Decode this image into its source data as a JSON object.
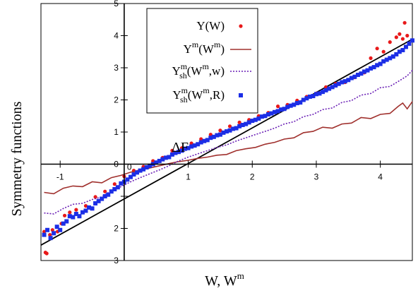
{
  "chart_data": {
    "type": "scatter",
    "title": "",
    "xlabel_main": "W, W",
    "xlabel_sup": "m",
    "ylabel": "Symmetry functions",
    "xlim": [
      -1.3,
      4.5
    ],
    "ylim": [
      -3,
      5
    ],
    "grid": false,
    "legend_position": "top-center",
    "x_ticks": [
      -1,
      1,
      2,
      3,
      4
    ],
    "x_zero_label": "0",
    "y_ticks": [
      -3,
      -2,
      -1,
      0,
      1,
      2,
      3,
      4,
      5
    ],
    "y_tick_labels": [
      "3",
      "2",
      "",
      "0",
      "1",
      "2",
      "3",
      "4",
      "5"
    ],
    "annotation": "ΔF",
    "colors": {
      "red": "#e8191a",
      "brown": "#a0302d",
      "purple": "#6a1fb5",
      "blue": "#1c2ee6",
      "black": "#000000"
    },
    "series": [
      {
        "label_base": "Y(W)",
        "label_sup": "",
        "label_sub": "",
        "label_tail": "",
        "style": "red-dots",
        "points": [
          [
            -1.25,
            -2.1
          ],
          [
            -1.23,
            -2.75
          ],
          [
            -1.21,
            -2.78
          ],
          [
            -1.16,
            -2.2
          ],
          [
            -1.12,
            -2.05
          ],
          [
            -1.04,
            -2.1
          ],
          [
            -0.98,
            -1.85
          ],
          [
            -0.93,
            -1.6
          ],
          [
            -0.85,
            -1.5
          ],
          [
            -0.75,
            -1.42
          ],
          [
            -0.6,
            -1.3
          ],
          [
            -0.45,
            -1.02
          ],
          [
            -0.3,
            -0.85
          ],
          [
            -0.15,
            -0.62
          ],
          [
            0.0,
            -0.38
          ],
          [
            0.15,
            -0.2
          ],
          [
            0.3,
            -0.08
          ],
          [
            0.45,
            0.1
          ],
          [
            0.6,
            0.2
          ],
          [
            0.75,
            0.42
          ],
          [
            0.9,
            0.5
          ],
          [
            1.05,
            0.65
          ],
          [
            1.2,
            0.78
          ],
          [
            1.35,
            0.92
          ],
          [
            1.5,
            1.05
          ],
          [
            1.65,
            1.18
          ],
          [
            1.8,
            1.3
          ],
          [
            1.95,
            1.38
          ],
          [
            2.1,
            1.5
          ],
          [
            2.25,
            1.6
          ],
          [
            2.4,
            1.8
          ],
          [
            2.55,
            1.85
          ],
          [
            2.7,
            1.98
          ],
          [
            2.85,
            2.1
          ],
          [
            3.0,
            2.2
          ],
          [
            3.15,
            2.4
          ],
          [
            3.3,
            2.5
          ],
          [
            3.45,
            2.55
          ],
          [
            3.6,
            2.7
          ],
          [
            3.75,
            2.85
          ],
          [
            3.85,
            3.3
          ],
          [
            3.95,
            3.6
          ],
          [
            4.05,
            3.5
          ],
          [
            4.15,
            3.8
          ],
          [
            4.25,
            3.95
          ],
          [
            4.3,
            4.05
          ],
          [
            4.35,
            3.9
          ],
          [
            4.38,
            4.4
          ],
          [
            4.42,
            4.0
          ]
        ]
      },
      {
        "label_base": "Y",
        "label_sup": "m",
        "label_sub": "",
        "label_tail": "(W",
        "label_tail_sup": "m",
        "label_end": ")",
        "style": "brown-line",
        "points": [
          [
            -1.25,
            -0.88
          ],
          [
            -1.1,
            -0.92
          ],
          [
            -0.95,
            -0.75
          ],
          [
            -0.8,
            -0.68
          ],
          [
            -0.65,
            -0.7
          ],
          [
            -0.5,
            -0.55
          ],
          [
            -0.35,
            -0.58
          ],
          [
            -0.2,
            -0.42
          ],
          [
            -0.05,
            -0.35
          ],
          [
            0.1,
            -0.25
          ],
          [
            0.25,
            -0.18
          ],
          [
            0.4,
            -0.12
          ],
          [
            0.55,
            -0.05
          ],
          [
            0.7,
            0.02
          ],
          [
            0.85,
            0.08
          ],
          [
            1.0,
            0.12
          ],
          [
            1.15,
            0.18
          ],
          [
            1.3,
            0.22
          ],
          [
            1.45,
            0.28
          ],
          [
            1.6,
            0.3
          ],
          [
            1.75,
            0.42
          ],
          [
            1.9,
            0.48
          ],
          [
            2.05,
            0.52
          ],
          [
            2.2,
            0.62
          ],
          [
            2.35,
            0.68
          ],
          [
            2.5,
            0.78
          ],
          [
            2.65,
            0.82
          ],
          [
            2.8,
            0.98
          ],
          [
            2.95,
            1.02
          ],
          [
            3.1,
            1.15
          ],
          [
            3.25,
            1.12
          ],
          [
            3.4,
            1.25
          ],
          [
            3.55,
            1.28
          ],
          [
            3.7,
            1.45
          ],
          [
            3.85,
            1.42
          ],
          [
            4.0,
            1.55
          ],
          [
            4.15,
            1.58
          ],
          [
            4.28,
            1.8
          ],
          [
            4.35,
            1.9
          ],
          [
            4.42,
            1.72
          ],
          [
            4.5,
            1.95
          ]
        ]
      },
      {
        "label_base": "Y",
        "label_sup": "m",
        "label_sub": "sh",
        "label_tail": "(W",
        "label_tail_sup": "m",
        "label_end": ",w)",
        "style": "purple-dotted",
        "points": [
          [
            -1.25,
            -1.52
          ],
          [
            -1.1,
            -1.55
          ],
          [
            -0.95,
            -1.38
          ],
          [
            -0.8,
            -1.25
          ],
          [
            -0.65,
            -1.22
          ],
          [
            -0.5,
            -1.1
          ],
          [
            -0.35,
            -1.02
          ],
          [
            -0.2,
            -0.82
          ],
          [
            -0.05,
            -0.7
          ],
          [
            0.1,
            -0.55
          ],
          [
            0.25,
            -0.42
          ],
          [
            0.4,
            -0.3
          ],
          [
            0.55,
            -0.18
          ],
          [
            0.7,
            -0.05
          ],
          [
            0.85,
            0.1
          ],
          [
            1.0,
            0.22
          ],
          [
            1.15,
            0.32
          ],
          [
            1.3,
            0.42
          ],
          [
            1.45,
            0.52
          ],
          [
            1.6,
            0.6
          ],
          [
            1.75,
            0.72
          ],
          [
            1.9,
            0.82
          ],
          [
            2.05,
            0.92
          ],
          [
            2.2,
            1.02
          ],
          [
            2.35,
            1.12
          ],
          [
            2.5,
            1.25
          ],
          [
            2.65,
            1.32
          ],
          [
            2.8,
            1.48
          ],
          [
            2.95,
            1.55
          ],
          [
            3.1,
            1.7
          ],
          [
            3.25,
            1.75
          ],
          [
            3.4,
            1.92
          ],
          [
            3.55,
            1.98
          ],
          [
            3.7,
            2.15
          ],
          [
            3.85,
            2.2
          ],
          [
            4.0,
            2.38
          ],
          [
            4.15,
            2.42
          ],
          [
            4.3,
            2.6
          ],
          [
            4.42,
            2.75
          ],
          [
            4.5,
            2.92
          ]
        ]
      },
      {
        "label_base": "Y",
        "label_sup": "m",
        "label_sub": "sh",
        "label_tail": "(W",
        "label_tail_sup": "m",
        "label_end": ",R)",
        "style": "blue-squares",
        "points": [
          [
            -1.25,
            -2.2
          ],
          [
            -1.2,
            -2.05
          ],
          [
            -1.15,
            -2.3
          ],
          [
            -1.1,
            -2.15
          ],
          [
            -1.05,
            -1.95
          ],
          [
            -1.0,
            -2.05
          ],
          [
            -0.95,
            -1.85
          ],
          [
            -0.9,
            -1.78
          ],
          [
            -0.85,
            -1.62
          ],
          [
            -0.8,
            -1.65
          ],
          [
            -0.75,
            -1.55
          ],
          [
            -0.7,
            -1.62
          ],
          [
            -0.65,
            -1.5
          ],
          [
            -0.6,
            -1.45
          ],
          [
            -0.55,
            -1.35
          ],
          [
            -0.5,
            -1.38
          ],
          [
            -0.45,
            -1.22
          ],
          [
            -0.4,
            -1.15
          ],
          [
            -0.35,
            -1.08
          ],
          [
            -0.3,
            -1.0
          ],
          [
            -0.25,
            -0.95
          ],
          [
            -0.2,
            -0.85
          ],
          [
            -0.15,
            -0.78
          ],
          [
            -0.1,
            -0.72
          ],
          [
            -0.05,
            -0.6
          ],
          [
            0.0,
            -0.55
          ],
          [
            0.05,
            -0.48
          ],
          [
            0.1,
            -0.4
          ],
          [
            0.15,
            -0.32
          ],
          [
            0.2,
            -0.26
          ],
          [
            0.25,
            -0.2
          ],
          [
            0.3,
            -0.16
          ],
          [
            0.35,
            -0.1
          ],
          [
            0.4,
            -0.05
          ],
          [
            0.45,
            0.0
          ],
          [
            0.5,
            0.05
          ],
          [
            0.55,
            0.1
          ],
          [
            0.6,
            0.15
          ],
          [
            0.65,
            0.2
          ],
          [
            0.7,
            0.22
          ],
          [
            0.75,
            0.3
          ],
          [
            0.8,
            0.35
          ],
          [
            0.85,
            0.38
          ],
          [
            0.9,
            0.42
          ],
          [
            0.95,
            0.48
          ],
          [
            1.0,
            0.5
          ],
          [
            1.05,
            0.55
          ],
          [
            1.1,
            0.58
          ],
          [
            1.15,
            0.62
          ],
          [
            1.2,
            0.68
          ],
          [
            1.25,
            0.72
          ],
          [
            1.3,
            0.75
          ],
          [
            1.35,
            0.82
          ],
          [
            1.4,
            0.85
          ],
          [
            1.45,
            0.9
          ],
          [
            1.5,
            0.92
          ],
          [
            1.55,
            0.98
          ],
          [
            1.6,
            1.02
          ],
          [
            1.65,
            1.05
          ],
          [
            1.7,
            1.1
          ],
          [
            1.75,
            1.12
          ],
          [
            1.8,
            1.18
          ],
          [
            1.85,
            1.22
          ],
          [
            1.9,
            1.25
          ],
          [
            1.95,
            1.3
          ],
          [
            2.0,
            1.35
          ],
          [
            2.05,
            1.38
          ],
          [
            2.1,
            1.42
          ],
          [
            2.15,
            1.48
          ],
          [
            2.2,
            1.5
          ],
          [
            2.25,
            1.55
          ],
          [
            2.3,
            1.58
          ],
          [
            2.35,
            1.62
          ],
          [
            2.4,
            1.65
          ],
          [
            2.45,
            1.7
          ],
          [
            2.5,
            1.72
          ],
          [
            2.55,
            1.78
          ],
          [
            2.6,
            1.82
          ],
          [
            2.65,
            1.85
          ],
          [
            2.7,
            1.9
          ],
          [
            2.75,
            1.92
          ],
          [
            2.8,
            2.0
          ],
          [
            2.85,
            2.05
          ],
          [
            2.9,
            2.1
          ],
          [
            2.95,
            2.12
          ],
          [
            3.0,
            2.18
          ],
          [
            3.05,
            2.2
          ],
          [
            3.1,
            2.25
          ],
          [
            3.15,
            2.3
          ],
          [
            3.2,
            2.35
          ],
          [
            3.25,
            2.4
          ],
          [
            3.3,
            2.45
          ],
          [
            3.35,
            2.5
          ],
          [
            3.4,
            2.55
          ],
          [
            3.45,
            2.58
          ],
          [
            3.5,
            2.62
          ],
          [
            3.55,
            2.68
          ],
          [
            3.6,
            2.72
          ],
          [
            3.65,
            2.78
          ],
          [
            3.7,
            2.82
          ],
          [
            3.75,
            2.88
          ],
          [
            3.8,
            2.92
          ],
          [
            3.85,
            2.98
          ],
          [
            3.9,
            3.02
          ],
          [
            3.95,
            3.08
          ],
          [
            4.0,
            3.12
          ],
          [
            4.05,
            3.2
          ],
          [
            4.1,
            3.25
          ],
          [
            4.15,
            3.3
          ],
          [
            4.2,
            3.35
          ],
          [
            4.25,
            3.42
          ],
          [
            4.3,
            3.5
          ],
          [
            4.35,
            3.55
          ],
          [
            4.4,
            3.65
          ],
          [
            4.45,
            3.75
          ],
          [
            4.5,
            3.85
          ]
        ]
      }
    ],
    "fit_line": {
      "label": "",
      "x": [
        -1.3,
        4.5
      ],
      "y": [
        -2.52,
        3.89
      ]
    }
  }
}
